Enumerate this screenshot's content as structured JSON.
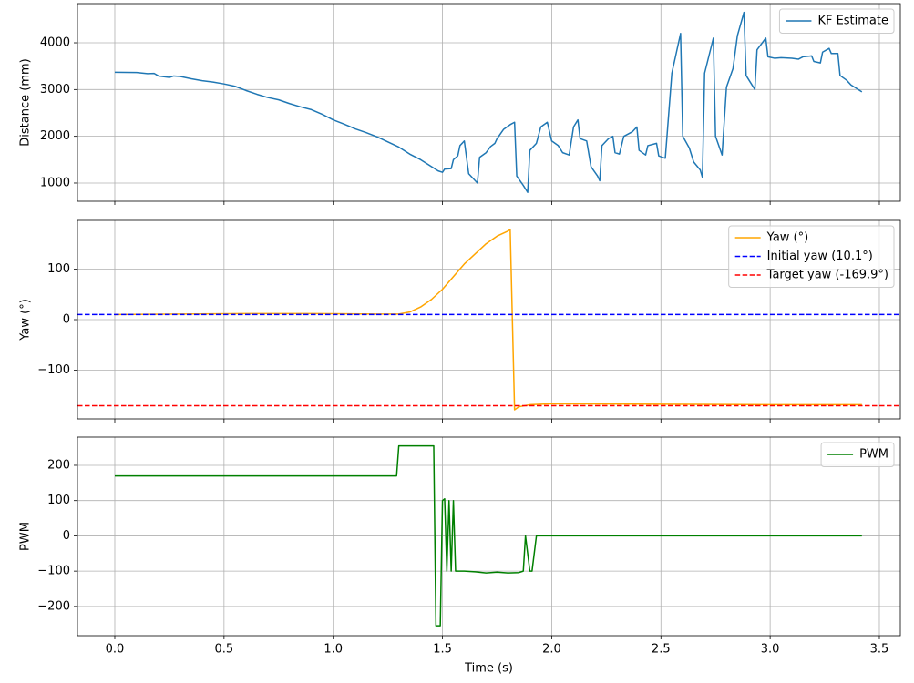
{
  "chart_data": [
    {
      "type": "line",
      "ylabel": "Distance (mm)",
      "xlim": [
        -0.171,
        3.596
      ],
      "ylim": [
        610,
        4838
      ],
      "yticks": [
        1000,
        2000,
        3000,
        4000
      ],
      "grid": true,
      "legend": "upper right",
      "x": [
        0.0,
        0.1,
        0.15,
        0.18,
        0.2,
        0.25,
        0.27,
        0.3,
        0.35,
        0.4,
        0.45,
        0.5,
        0.55,
        0.6,
        0.65,
        0.7,
        0.75,
        0.8,
        0.85,
        0.9,
        0.95,
        1.0,
        1.05,
        1.1,
        1.15,
        1.2,
        1.25,
        1.3,
        1.35,
        1.4,
        1.45,
        1.48,
        1.5,
        1.51,
        1.54,
        1.55,
        1.57,
        1.58,
        1.6,
        1.62,
        1.66,
        1.67,
        1.7,
        1.72,
        1.74,
        1.75,
        1.78,
        1.81,
        1.83,
        1.84,
        1.87,
        1.89,
        1.9,
        1.93,
        1.95,
        1.98,
        2.0,
        2.03,
        2.05,
        2.08,
        2.1,
        2.12,
        2.13,
        2.16,
        2.18,
        2.21,
        2.22,
        2.23,
        2.26,
        2.28,
        2.29,
        2.31,
        2.33,
        2.37,
        2.39,
        2.4,
        2.43,
        2.44,
        2.48,
        2.49,
        2.52,
        2.55,
        2.59,
        2.6,
        2.63,
        2.65,
        2.68,
        2.69,
        2.7,
        2.74,
        2.75,
        2.78,
        2.8,
        2.83,
        2.85,
        2.88,
        2.89,
        2.93,
        2.94,
        2.98,
        2.99,
        3.02,
        3.05,
        3.1,
        3.13,
        3.15,
        3.19,
        3.2,
        3.23,
        3.24,
        3.27,
        3.28,
        3.31,
        3.32,
        3.35,
        3.37,
        3.42
      ],
      "series": [
        {
          "name": "KF Estimate",
          "color": "#1f77b4",
          "values": [
            3370,
            3365,
            3340,
            3345,
            3290,
            3260,
            3290,
            3280,
            3230,
            3190,
            3160,
            3120,
            3070,
            2980,
            2900,
            2830,
            2780,
            2700,
            2630,
            2570,
            2470,
            2350,
            2260,
            2160,
            2080,
            1990,
            1880,
            1770,
            1620,
            1500,
            1350,
            1260,
            1230,
            1300,
            1310,
            1500,
            1580,
            1800,
            1900,
            1200,
            1000,
            1550,
            1650,
            1780,
            1850,
            1950,
            2150,
            2250,
            2300,
            1150,
            950,
            800,
            1700,
            1850,
            2200,
            2300,
            1900,
            1800,
            1650,
            1600,
            2200,
            2350,
            1950,
            1900,
            1350,
            1150,
            1050,
            1800,
            1950,
            2000,
            1650,
            1620,
            2000,
            2100,
            2200,
            1700,
            1600,
            1800,
            1850,
            1580,
            1530,
            3350,
            4200,
            2000,
            1750,
            1450,
            1280,
            1120,
            3350,
            4100,
            2000,
            1600,
            3050,
            3450,
            4150,
            4650,
            3300,
            3000,
            3850,
            4100,
            3700,
            3670,
            3680,
            3670,
            3650,
            3700,
            3720,
            3600,
            3570,
            3800,
            3880,
            3770,
            3770,
            3300,
            3200,
            3100,
            2950
          ]
        }
      ]
    },
    {
      "type": "line",
      "ylabel": "Yaw (°)",
      "xlim": [
        -0.171,
        3.596
      ],
      "ylim": [
        -196,
        196
      ],
      "yticks": [
        {
          "value": -100,
          "label": "−100"
        },
        0,
        100
      ],
      "grid": true,
      "legend": "upper right",
      "x": [
        0.0,
        0.3,
        0.6,
        0.9,
        1.2,
        1.3,
        1.35,
        1.4,
        1.45,
        1.5,
        1.55,
        1.6,
        1.65,
        1.7,
        1.75,
        1.8,
        1.81,
        1.83,
        1.85,
        1.9,
        2.0,
        2.5,
        3.0,
        3.42
      ],
      "series": [
        {
          "name": "Yaw (°)",
          "color": "#ffa500",
          "values": [
            10,
            11,
            12,
            12,
            11,
            11,
            15,
            25,
            40,
            60,
            85,
            110,
            130,
            150,
            165,
            175,
            178,
            -178,
            -172,
            -168,
            -166,
            -167,
            -168,
            -168
          ]
        }
      ],
      "hlines": [
        {
          "name": "Initial yaw (10.1°)",
          "value": 10.1,
          "color": "#0000ff"
        },
        {
          "name": "Target yaw (-169.9°)",
          "value": -169.9,
          "color": "#ff0000"
        }
      ]
    },
    {
      "type": "line",
      "ylabel": "PWM",
      "xlabel": "Time (s)",
      "xlim": [
        -0.171,
        3.596
      ],
      "ylim": [
        -283,
        280
      ],
      "xticks": [
        {
          "value": 0,
          "label": "0.0"
        },
        0.5,
        {
          "value": 1,
          "label": "1.0"
        },
        1.5,
        {
          "value": 2,
          "label": "2.0"
        },
        2.5,
        {
          "value": 3,
          "label": "3.0"
        },
        3.5
      ],
      "yticks": [
        {
          "value": -200,
          "label": "−200"
        },
        {
          "value": -100,
          "label": "−100"
        },
        0,
        100,
        200
      ],
      "grid": true,
      "legend": "upper right",
      "x": [
        0.0,
        1.29,
        1.3,
        1.46,
        1.47,
        1.49,
        1.5,
        1.51,
        1.52,
        1.53,
        1.54,
        1.55,
        1.56,
        1.6,
        1.65,
        1.7,
        1.75,
        1.8,
        1.85,
        1.87,
        1.88,
        1.9,
        1.91,
        1.93,
        3.42
      ],
      "series": [
        {
          "name": "PWM",
          "color": "#008000",
          "values": [
            170,
            170,
            255,
            255,
            -255,
            -255,
            100,
            105,
            -100,
            100,
            -100,
            100,
            -100,
            -100,
            -102,
            -105,
            -103,
            -105,
            -104,
            -100,
            0,
            -100,
            -100,
            0,
            0
          ]
        }
      ]
    }
  ]
}
